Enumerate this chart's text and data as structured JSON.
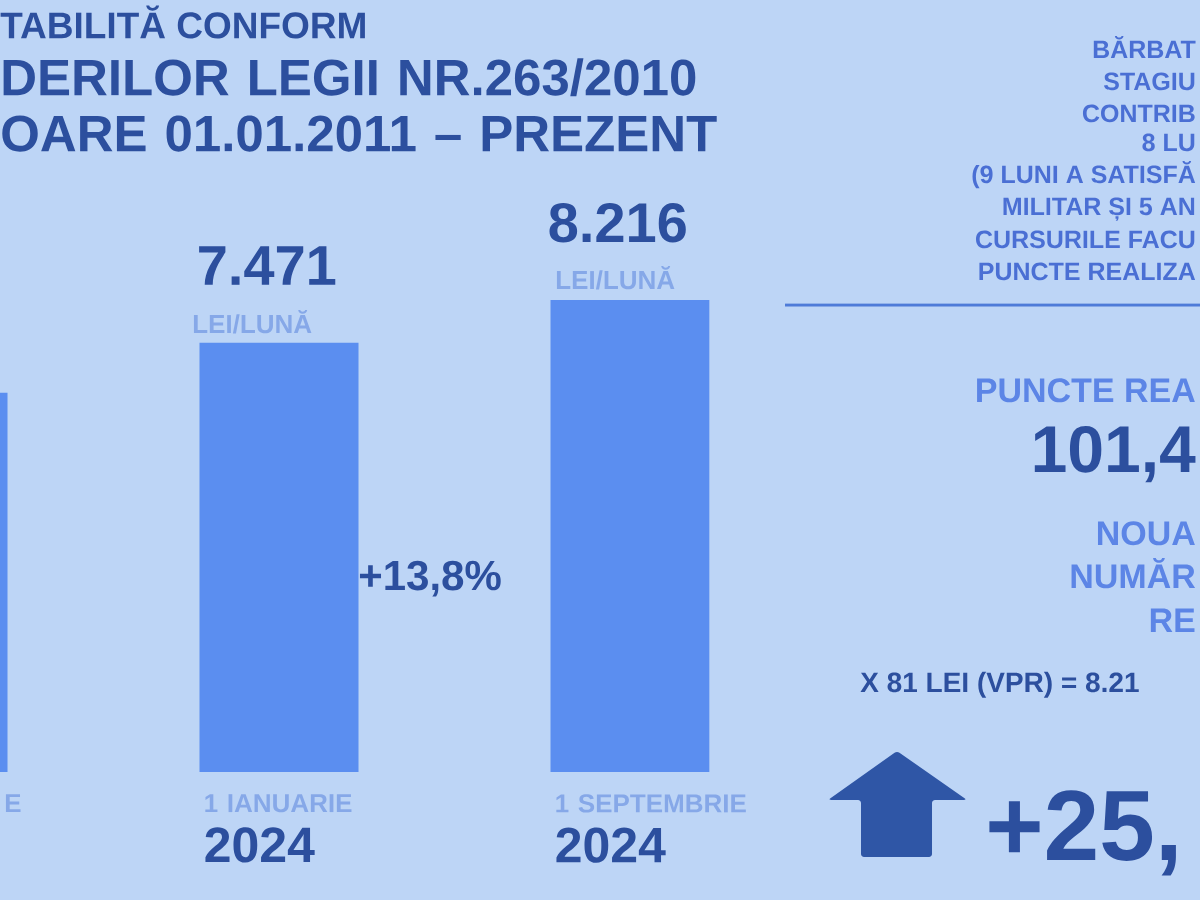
{
  "chart_data": {
    "type": "bar",
    "title": "TABILITĂ CONFORM",
    "subtitle": "DERILOR LEGII NR.263/2010 OARE 01.01.2011 – PREZENT",
    "categories": [
      "E",
      "1 IANUARIE **2024**",
      "1 SEPTEMBRIE **2024**"
    ],
    "values": [
      6600,
      7471,
      8216
    ],
    "color": "#5b8ef0",
    "value_labels": [
      null,
      "7.471",
      "8.216"
    ],
    "tick_labels": "x",
    "annotations": [
      "LEI/LUNĂ",
      "LEI/LUNĂ",
      "+13,8%",
      "BĂRBAT",
      "STAGIU",
      "CONTRIB",
      "8 LU",
      "(9 LUNI A SATISFĂ",
      "MILITAR ȘI 5 AN",
      "CURSURILE FACU",
      "PUNCTE REALIZA",
      "PUNCTE REA",
      "101,4",
      "NOUA",
      "NUMĂR",
      "RE",
      "X 81 LEI (VPR) = 8.21",
      "+25,"
    ]
  }
}
